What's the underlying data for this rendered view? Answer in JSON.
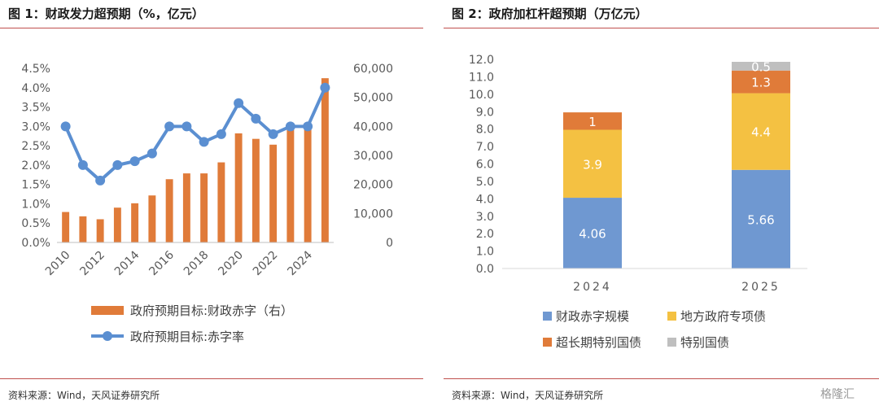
{
  "left": {
    "title": "图 1：财政发力超预期（%，亿元）",
    "source": "资料来源：Wind，天风证券研究所"
  },
  "right": {
    "title": "图 2：政府加杠杆超预期（万亿元）",
    "source": "资料来源：Wind，天风证券研究所"
  },
  "watermark": "格隆汇",
  "colors": {
    "bar_orange": "#e07b39",
    "line_blue": "#5b8fd1",
    "blue": "#6f98d1",
    "yellow": "#f4c142",
    "orange": "#e07b39",
    "gray": "#bfbfbf",
    "rule": "#c0504d"
  },
  "chart_data": [
    {
      "type": "bar+line",
      "x": [
        2010,
        2011,
        2012,
        2013,
        2014,
        2015,
        2016,
        2017,
        2018,
        2019,
        2020,
        2021,
        2022,
        2023,
        2024,
        2025
      ],
      "x_tick_labels": [
        "2010",
        "2012",
        "2014",
        "2016",
        "2018",
        "2020",
        "2022",
        "2024"
      ],
      "series": [
        {
          "name": "政府预期目标:财政赤字（右）",
          "type": "bar",
          "axis": "right",
          "values": [
            10500,
            9000,
            8000,
            12000,
            13500,
            16200,
            21800,
            23800,
            23800,
            27600,
            37600,
            35700,
            33700,
            38800,
            40600,
            56600
          ]
        },
        {
          "name": "政府预期目标:赤字率",
          "type": "line",
          "axis": "left",
          "values": [
            3.0,
            2.0,
            1.6,
            2.0,
            2.1,
            2.3,
            3.0,
            3.0,
            2.6,
            2.8,
            3.6,
            3.2,
            2.8,
            3.0,
            3.0,
            4.0
          ]
        }
      ],
      "y_left": {
        "ticks": [
          "0.0%",
          "0.5%",
          "1.0%",
          "1.5%",
          "2.0%",
          "2.5%",
          "3.0%",
          "3.5%",
          "4.0%",
          "4.5%"
        ],
        "range": [
          0,
          4.5
        ]
      },
      "y_right": {
        "ticks": [
          "0",
          "10,000",
          "20,000",
          "30,000",
          "40,000",
          "50,000",
          "60,000"
        ],
        "range": [
          0,
          60000
        ]
      },
      "legend_placement": "bottom",
      "grid": false
    },
    {
      "type": "stacked-bar",
      "categories": [
        "2024",
        "2025"
      ],
      "series": [
        {
          "name": "财政赤字规模",
          "values": [
            4.06,
            5.66
          ],
          "labels": [
            "4.06",
            "5.66"
          ]
        },
        {
          "name": "地方政府专项债",
          "values": [
            3.9,
            4.4
          ],
          "labels": [
            "3.9",
            "4.4"
          ]
        },
        {
          "name": "超长期特别国债",
          "values": [
            1,
            1.3
          ],
          "labels": [
            "1",
            "1.3"
          ]
        },
        {
          "name": "特别国债",
          "values": [
            0,
            0.5
          ],
          "labels": [
            "",
            "0.5"
          ]
        }
      ],
      "y_ticks": [
        "0.0",
        "1.0",
        "2.0",
        "3.0",
        "4.0",
        "5.0",
        "6.0",
        "7.0",
        "8.0",
        "9.0",
        "10.0",
        "11.0",
        "12.0"
      ],
      "ylim": [
        0,
        12
      ],
      "legend_placement": "bottom",
      "grid": false
    }
  ]
}
